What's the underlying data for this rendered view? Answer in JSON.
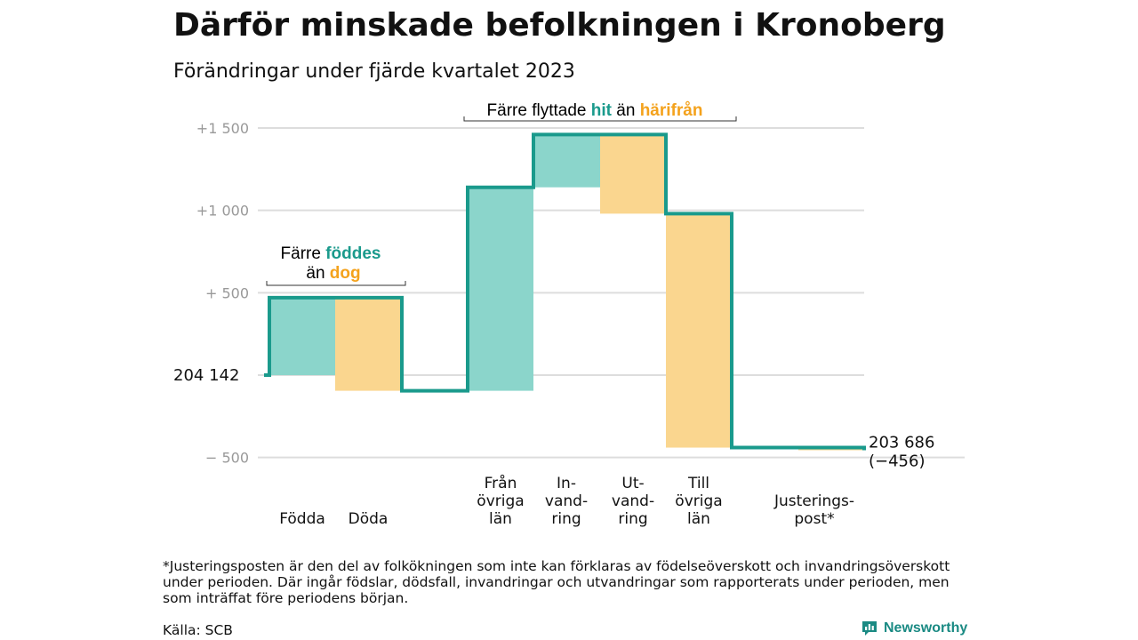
{
  "title": "Därför minskade befolkningen i Kronoberg",
  "subtitle": "Förändringar under fjärde kvartalet 2023",
  "colors": {
    "teal": "#1a9a8c",
    "teal_fill": "#8bd5cb",
    "orange": "#f4a21c",
    "orange_fill": "#fad68f",
    "grid": "#dddddd",
    "tick": "#999999"
  },
  "chart_data": {
    "type": "waterfall",
    "start_label": "204  142",
    "end_label": "203 686",
    "end_change_label": "(−456)",
    "y_ticks": [
      {
        "value": 1500,
        "label": "+1  500"
      },
      {
        "value": 1000,
        "label": "+1  000"
      },
      {
        "value": 500,
        "label": "+  500"
      },
      {
        "value": -500,
        "label": "−  500"
      }
    ],
    "ylim": [
      -500,
      1500
    ],
    "steps": [
      {
        "category": "Födda",
        "label_lines": [
          "Födda"
        ],
        "from": 0,
        "to": 470,
        "kind": "increase"
      },
      {
        "category": "Döda",
        "label_lines": [
          "Döda"
        ],
        "from": 470,
        "to": -95,
        "kind": "decrease"
      },
      {
        "category": "Från övriga län",
        "label_lines": [
          "Från",
          "övriga",
          "län"
        ],
        "from": -95,
        "to": 1140,
        "kind": "increase"
      },
      {
        "category": "Invandring",
        "label_lines": [
          "In-",
          "vand-",
          "ring"
        ],
        "from": 1140,
        "to": 1460,
        "kind": "increase"
      },
      {
        "category": "Utvandring",
        "label_lines": [
          "Ut-",
          "vand-",
          "ring"
        ],
        "from": 1460,
        "to": 980,
        "kind": "decrease"
      },
      {
        "category": "Till övriga län",
        "label_lines": [
          "Till",
          "övriga",
          "län"
        ],
        "from": 980,
        "to": -440,
        "kind": "decrease"
      },
      {
        "category": "Justeringspost*",
        "label_lines": [
          "Justerings-",
          "post*"
        ],
        "from": -440,
        "to": -456,
        "kind": "decrease"
      }
    ],
    "annotations": {
      "births": {
        "line1_prefix": "Färre ",
        "line1_highlight": "föddes",
        "line2_prefix": "än ",
        "line2_highlight": "dog"
      },
      "moves": {
        "prefix": "Färre flyttade ",
        "highlight1": "hit",
        "middle": " än ",
        "highlight2": "härifrån"
      }
    }
  },
  "footnote": "*Justeringsposten är den del av folkökningen som inte kan förklaras av födelseöverskott och invandringsöverskott under perioden. Där ingår födslar, dödsfall, invandringar och utvandringar som rapporterats under perioden, men som inträffat före periodens början.",
  "source": "Källa: SCB",
  "logo": {
    "text": "Newsworthy",
    "icon": "bar-chart-icon"
  }
}
